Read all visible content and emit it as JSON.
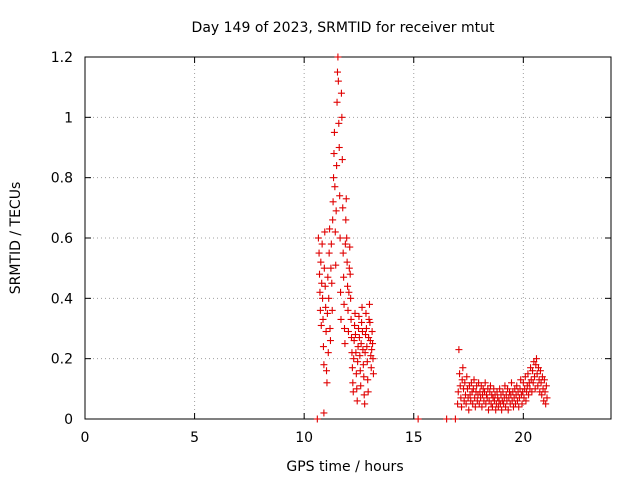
{
  "chart_data": {
    "type": "scatter",
    "title": "Day 149 of 2023, SRMTID for receiver mtut",
    "xlabel": "GPS time / hours",
    "ylabel": "SRMTID / TECUs",
    "xlim": [
      0,
      24
    ],
    "ylim": [
      0,
      1.2
    ],
    "xticks": [
      0,
      5,
      10,
      15,
      20
    ],
    "xtick_labels": [
      "0",
      "5",
      "10",
      "15",
      "20"
    ],
    "yticks": [
      0,
      0.2,
      0.4,
      0.6,
      0.8,
      1.0,
      1.2
    ],
    "ytick_labels": [
      "0",
      "0.2",
      "0.4",
      "0.6",
      "0.8",
      "1",
      "1.2"
    ],
    "grid": true,
    "marker": "+",
    "series": [
      {
        "name": "SRMTID",
        "color": "#e00000",
        "points": [
          [
            10.6,
            0.0
          ],
          [
            10.65,
            0.6
          ],
          [
            10.68,
            0.55
          ],
          [
            10.7,
            0.48
          ],
          [
            10.72,
            0.42
          ],
          [
            10.74,
            0.36
          ],
          [
            10.76,
            0.52
          ],
          [
            10.78,
            0.31
          ],
          [
            10.8,
            0.45
          ],
          [
            10.82,
            0.58
          ],
          [
            10.84,
            0.4
          ],
          [
            10.86,
            0.33
          ],
          [
            10.88,
            0.24
          ],
          [
            10.9,
            0.18
          ],
          [
            10.9,
            0.02
          ],
          [
            10.92,
            0.5
          ],
          [
            10.94,
            0.62
          ],
          [
            10.96,
            0.44
          ],
          [
            10.98,
            0.37
          ],
          [
            11.0,
            0.29
          ],
          [
            11.02,
            0.16
          ],
          [
            11.04,
            0.12
          ],
          [
            11.06,
            0.35
          ],
          [
            11.08,
            0.47
          ],
          [
            11.1,
            0.22
          ],
          [
            11.12,
            0.4
          ],
          [
            11.14,
            0.55
          ],
          [
            11.16,
            0.63
          ],
          [
            11.18,
            0.3
          ],
          [
            11.2,
            0.26
          ],
          [
            11.22,
            0.5
          ],
          [
            11.24,
            0.58
          ],
          [
            11.26,
            0.45
          ],
          [
            11.28,
            0.36
          ],
          [
            11.3,
            0.66
          ],
          [
            11.32,
            0.72
          ],
          [
            11.34,
            0.8
          ],
          [
            11.36,
            0.88
          ],
          [
            11.38,
            0.95
          ],
          [
            11.4,
            0.77
          ],
          [
            11.42,
            0.62
          ],
          [
            11.44,
            0.51
          ],
          [
            11.46,
            0.69
          ],
          [
            11.48,
            0.84
          ],
          [
            11.5,
            1.05
          ],
          [
            11.52,
            1.15
          ],
          [
            11.54,
            1.2
          ],
          [
            11.56,
            1.12
          ],
          [
            11.58,
            0.98
          ],
          [
            11.6,
            0.9
          ],
          [
            11.62,
            0.74
          ],
          [
            11.64,
            0.6
          ],
          [
            11.66,
            0.42
          ],
          [
            11.68,
            0.33
          ],
          [
            11.7,
            1.08
          ],
          [
            11.72,
            1.0
          ],
          [
            11.74,
            0.86
          ],
          [
            11.76,
            0.7
          ],
          [
            11.78,
            0.55
          ],
          [
            11.8,
            0.47
          ],
          [
            11.82,
            0.38
          ],
          [
            11.84,
            0.3
          ],
          [
            11.86,
            0.25
          ],
          [
            11.88,
            0.58
          ],
          [
            11.9,
            0.66
          ],
          [
            11.92,
            0.73
          ],
          [
            11.94,
            0.6
          ],
          [
            11.96,
            0.52
          ],
          [
            11.98,
            0.44
          ],
          [
            12.0,
            0.36
          ],
          [
            12.02,
            0.29
          ],
          [
            12.04,
            0.42
          ],
          [
            12.06,
            0.5
          ],
          [
            12.08,
            0.57
          ],
          [
            12.1,
            0.48
          ],
          [
            12.12,
            0.4
          ],
          [
            12.14,
            0.33
          ],
          [
            12.16,
            0.27
          ],
          [
            12.18,
            0.22
          ],
          [
            12.2,
            0.17
          ],
          [
            12.22,
            0.12
          ],
          [
            12.24,
            0.09
          ],
          [
            12.26,
            0.2
          ],
          [
            12.28,
            0.26
          ],
          [
            12.3,
            0.31
          ],
          [
            12.32,
            0.35
          ],
          [
            12.34,
            0.28
          ],
          [
            12.36,
            0.22
          ],
          [
            12.38,
            0.15
          ],
          [
            12.4,
            0.1
          ],
          [
            12.42,
            0.06
          ],
          [
            12.44,
            0.19
          ],
          [
            12.46,
            0.24
          ],
          [
            12.48,
            0.3
          ],
          [
            12.5,
            0.34
          ],
          [
            12.52,
            0.27
          ],
          [
            12.54,
            0.21
          ],
          [
            12.56,
            0.16
          ],
          [
            12.58,
            0.11
          ],
          [
            12.6,
            0.25
          ],
          [
            12.62,
            0.32
          ],
          [
            12.64,
            0.37
          ],
          [
            12.66,
            0.29
          ],
          [
            12.68,
            0.23
          ],
          [
            12.7,
            0.18
          ],
          [
            12.72,
            0.14
          ],
          [
            12.74,
            0.08
          ],
          [
            12.76,
            0.05
          ],
          [
            12.78,
            0.22
          ],
          [
            12.8,
            0.28
          ],
          [
            12.82,
            0.35
          ],
          [
            12.84,
            0.3
          ],
          [
            12.86,
            0.24
          ],
          [
            12.88,
            0.19
          ],
          [
            12.9,
            0.13
          ],
          [
            12.92,
            0.09
          ],
          [
            12.94,
            0.27
          ],
          [
            12.96,
            0.33
          ],
          [
            12.98,
            0.38
          ],
          [
            13.0,
            0.32
          ],
          [
            13.02,
            0.26
          ],
          [
            13.04,
            0.21
          ],
          [
            13.06,
            0.17
          ],
          [
            13.08,
            0.23
          ],
          [
            13.1,
            0.29
          ],
          [
            13.12,
            0.25
          ],
          [
            13.14,
            0.2
          ],
          [
            13.16,
            0.15
          ],
          [
            15.2,
            0.0
          ],
          [
            16.5,
            0.0
          ],
          [
            16.9,
            0.0
          ],
          [
            17.0,
            0.05
          ],
          [
            17.03,
            0.09
          ],
          [
            17.06,
            0.23
          ],
          [
            17.09,
            0.15
          ],
          [
            17.12,
            0.11
          ],
          [
            17.15,
            0.07
          ],
          [
            17.18,
            0.04
          ],
          [
            17.21,
            0.13
          ],
          [
            17.24,
            0.17
          ],
          [
            17.27,
            0.1
          ],
          [
            17.3,
            0.06
          ],
          [
            17.33,
            0.12
          ],
          [
            17.36,
            0.08
          ],
          [
            17.39,
            0.05
          ],
          [
            17.42,
            0.14
          ],
          [
            17.45,
            0.1
          ],
          [
            17.48,
            0.07
          ],
          [
            17.51,
            0.03
          ],
          [
            17.54,
            0.11
          ],
          [
            17.57,
            0.08
          ],
          [
            17.6,
            0.06
          ],
          [
            17.63,
            0.12
          ],
          [
            17.66,
            0.09
          ],
          [
            17.69,
            0.05
          ],
          [
            17.72,
            0.1
          ],
          [
            17.75,
            0.13
          ],
          [
            17.78,
            0.07
          ],
          [
            17.81,
            0.04
          ],
          [
            17.84,
            0.09
          ],
          [
            17.87,
            0.11
          ],
          [
            17.9,
            0.06
          ],
          [
            17.93,
            0.08
          ],
          [
            17.96,
            0.12
          ],
          [
            17.99,
            0.05
          ],
          [
            18.02,
            0.09
          ],
          [
            18.05,
            0.07
          ],
          [
            18.08,
            0.11
          ],
          [
            18.11,
            0.04
          ],
          [
            18.14,
            0.08
          ],
          [
            18.17,
            0.1
          ],
          [
            18.2,
            0.06
          ],
          [
            18.23,
            0.09
          ],
          [
            18.26,
            0.12
          ],
          [
            18.29,
            0.05
          ],
          [
            18.32,
            0.08
          ],
          [
            18.35,
            0.07
          ],
          [
            18.38,
            0.1
          ],
          [
            18.41,
            0.03
          ],
          [
            18.44,
            0.06
          ],
          [
            18.47,
            0.09
          ],
          [
            18.5,
            0.11
          ],
          [
            18.53,
            0.05
          ],
          [
            18.56,
            0.08
          ],
          [
            18.59,
            0.04
          ],
          [
            18.62,
            0.07
          ],
          [
            18.65,
            0.1
          ],
          [
            18.68,
            0.06
          ],
          [
            18.71,
            0.08
          ],
          [
            18.74,
            0.03
          ],
          [
            18.77,
            0.05
          ],
          [
            18.8,
            0.09
          ],
          [
            18.83,
            0.07
          ],
          [
            18.86,
            0.04
          ],
          [
            18.89,
            0.06
          ],
          [
            18.92,
            0.1
          ],
          [
            18.95,
            0.05
          ],
          [
            18.98,
            0.08
          ],
          [
            19.01,
            0.03
          ],
          [
            19.04,
            0.06
          ],
          [
            19.07,
            0.09
          ],
          [
            19.1,
            0.05
          ],
          [
            19.13,
            0.07
          ],
          [
            19.16,
            0.11
          ],
          [
            19.19,
            0.04
          ],
          [
            19.22,
            0.08
          ],
          [
            19.25,
            0.06
          ],
          [
            19.28,
            0.1
          ],
          [
            19.31,
            0.03
          ],
          [
            19.34,
            0.07
          ],
          [
            19.37,
            0.09
          ],
          [
            19.4,
            0.05
          ],
          [
            19.43,
            0.08
          ],
          [
            19.46,
            0.12
          ],
          [
            19.49,
            0.06
          ],
          [
            19.52,
            0.09
          ],
          [
            19.55,
            0.04
          ],
          [
            19.58,
            0.07
          ],
          [
            19.61,
            0.1
          ],
          [
            19.64,
            0.05
          ],
          [
            19.67,
            0.08
          ],
          [
            19.7,
            0.11
          ],
          [
            19.73,
            0.06
          ],
          [
            19.76,
            0.09
          ],
          [
            19.79,
            0.04
          ],
          [
            19.82,
            0.07
          ],
          [
            19.85,
            0.1
          ],
          [
            19.88,
            0.13
          ],
          [
            19.91,
            0.08
          ],
          [
            19.94,
            0.05
          ],
          [
            19.97,
            0.09
          ],
          [
            20.0,
            0.12
          ],
          [
            20.03,
            0.07
          ],
          [
            20.06,
            0.1
          ],
          [
            20.09,
            0.14
          ],
          [
            20.12,
            0.06
          ],
          [
            20.15,
            0.09
          ],
          [
            20.18,
            0.11
          ],
          [
            20.21,
            0.15
          ],
          [
            20.24,
            0.08
          ],
          [
            20.27,
            0.12
          ],
          [
            20.3,
            0.1
          ],
          [
            20.33,
            0.17
          ],
          [
            20.36,
            0.13
          ],
          [
            20.39,
            0.09
          ],
          [
            20.42,
            0.16
          ],
          [
            20.45,
            0.12
          ],
          [
            20.48,
            0.19
          ],
          [
            20.51,
            0.14
          ],
          [
            20.54,
            0.1
          ],
          [
            20.57,
            0.18
          ],
          [
            20.6,
            0.2
          ],
          [
            20.63,
            0.15
          ],
          [
            20.66,
            0.11
          ],
          [
            20.69,
            0.17
          ],
          [
            20.72,
            0.13
          ],
          [
            20.75,
            0.09
          ],
          [
            20.78,
            0.16
          ],
          [
            20.81,
            0.12
          ],
          [
            20.84,
            0.08
          ],
          [
            20.87,
            0.14
          ],
          [
            20.9,
            0.1
          ],
          [
            20.93,
            0.06
          ],
          [
            20.96,
            0.13
          ],
          [
            20.99,
            0.09
          ],
          [
            21.02,
            0.05
          ],
          [
            21.05,
            0.11
          ],
          [
            21.08,
            0.07
          ]
        ]
      }
    ]
  }
}
